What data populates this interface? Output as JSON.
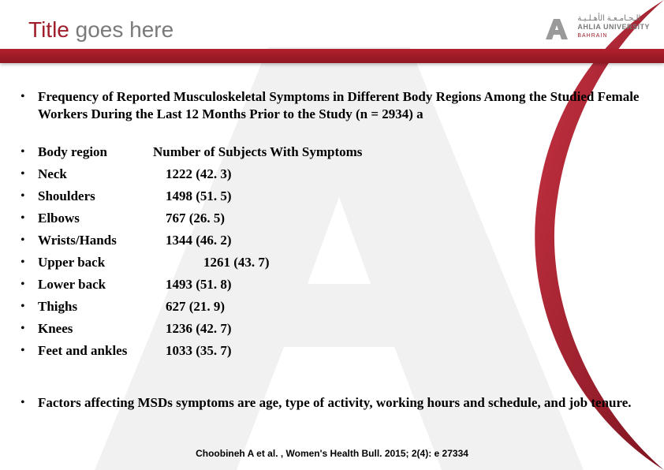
{
  "title_prefix": "Title ",
  "title_rest": "goes here",
  "logo": {
    "arabic": "الـجـامـعـة الأهـلـيـة",
    "english": "AHLIA UNIVERSITY",
    "country": "BAHRAIN"
  },
  "heading": "Frequency of Reported Musculoskeletal Symptoms in Different Body Regions Among the Studied Female Workers During the Last 12 Months Prior to the Study (n = 2934) a",
  "columns": {
    "region": "Body region",
    "value": "Number of Subjects With Symptoms"
  },
  "rows": [
    {
      "region": "Neck",
      "value": "1222 (42. 3)",
      "pad": 0
    },
    {
      "region": "Shoulders",
      "value": "1498 (51. 5)",
      "pad": 0
    },
    {
      "region": "Elbows",
      "value": "767 (26. 5)",
      "pad": 0
    },
    {
      "region": "Wrists/Hands",
      "value": "1344 (46. 2)",
      "pad": 0
    },
    {
      "region": "Upper back",
      "value": "1261 (43. 7)",
      "pad": 48
    },
    {
      "region": "Lower back",
      "value": "1493 (51. 8)",
      "pad": 0
    },
    {
      "region": "Thighs",
      "value": "627 (21. 9)",
      "pad": 0
    },
    {
      "region": "Knees",
      "value": "1236 (42. 7)",
      "pad": 0
    },
    {
      "region": "Feet and ankles",
      "value": "1033 (35. 7)",
      "pad": 0
    }
  ],
  "factors": "Factors affecting MSDs symptoms are age, type of activity, working hours and schedule, and job tenure.",
  "citation": "Choobineh A et al. , Women's Health Bull. 2015; 2(4): e 27334",
  "colors": {
    "accent": "#a01e2c",
    "bar_top": "#b21f2d",
    "bar_bottom": "#8e1824",
    "title_gray": "#7a7a7a",
    "wm_gray": "#ececec"
  }
}
